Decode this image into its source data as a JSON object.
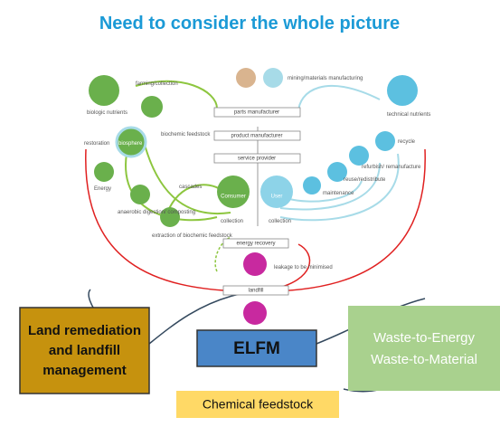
{
  "header": {
    "title": "Need to consider the whole picture"
  },
  "diagram": {
    "left": {
      "biologic": "biologic nutrients",
      "farming": "farming/collection",
      "feedstock": "biochemic feedstock",
      "restoration": "restoration",
      "biosphere": "biosphere",
      "energy": "Energy",
      "digestion": "anaerobic digestion/ composting",
      "extraction": "extraction of biochemic feedstock",
      "cascades": "cascades"
    },
    "center": {
      "parts": "parts manufacturer",
      "product": "product manufacturer",
      "service": "service provider",
      "consumer": "Consumer",
      "user": "User",
      "collection_left": "collection",
      "collection_right": "collection",
      "energy_recovery": "energy recovery",
      "leakage": "leakage to be minimised",
      "landfill": "landfill"
    },
    "right": {
      "mining": "mining/materials manufacturing",
      "technical": "technical nutrients",
      "recycle": "recycle",
      "refurbish": "refurbish/ remanufacture",
      "reuse": "reuse/redistribute",
      "maintenance": "maintenance"
    }
  },
  "boxes": {
    "land": "Land remediation and landfill management",
    "elfm": "ELFM",
    "wte": "Waste-to-Energy",
    "wtm": "Waste-to-Material",
    "chemical": "Chemical feedstock"
  }
}
